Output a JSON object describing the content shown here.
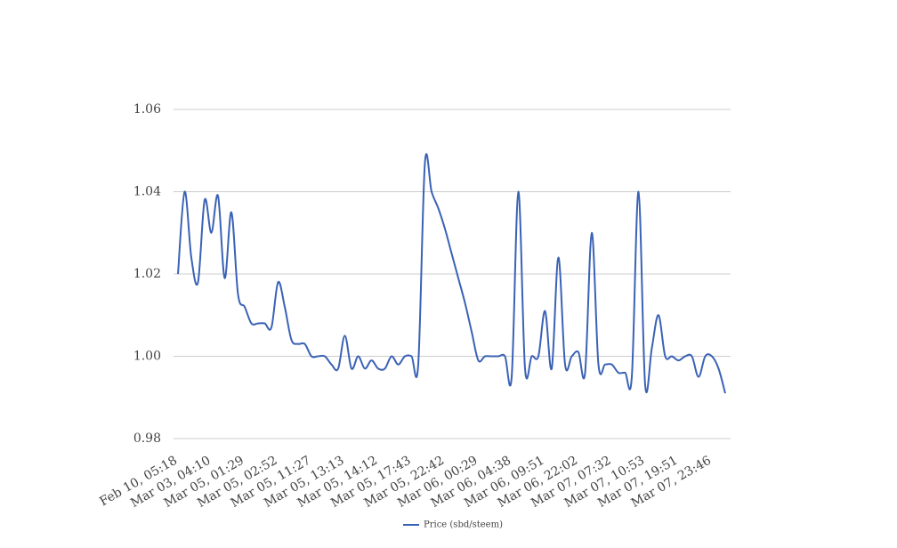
{
  "chart_data": {
    "type": "line",
    "categories": [
      "Feb 10, 05:18",
      null,
      null,
      null,
      null,
      "Mar 03, 04:10",
      null,
      null,
      null,
      null,
      "Mar 05, 01:29",
      null,
      null,
      null,
      null,
      "Mar 05, 02:52",
      null,
      null,
      null,
      null,
      "Mar 05, 11:27",
      null,
      null,
      null,
      null,
      "Mar 05, 13:13",
      null,
      null,
      null,
      null,
      "Mar 05, 14:12",
      null,
      null,
      null,
      null,
      "Mar 05, 17:43",
      null,
      null,
      null,
      null,
      "Mar 05, 22:42",
      null,
      null,
      null,
      null,
      "Mar 06, 00:29",
      null,
      null,
      null,
      null,
      "Mar 06, 04:38",
      null,
      null,
      null,
      null,
      "Mar 06, 09:51",
      null,
      null,
      null,
      null,
      "Mar 06, 22:02",
      null,
      null,
      null,
      null,
      "Mar 07, 07:32",
      null,
      null,
      null,
      null,
      "Mar 07, 10:53",
      null,
      null,
      null,
      null,
      "Mar 07, 19:51",
      null,
      null,
      null,
      null,
      "Mar 07, 23:46",
      null,
      null
    ],
    "series": [
      {
        "name": "Price (sbd/steem)",
        "color": "#3a62b5",
        "values": [
          1.02,
          1.04,
          1.024,
          1.018,
          1.038,
          1.03,
          1.039,
          1.019,
          1.035,
          1.015,
          1.012,
          1.008,
          1.008,
          1.008,
          1.007,
          1.018,
          1.012,
          1.004,
          1.003,
          1.003,
          1.0,
          1.0,
          1.0,
          0.998,
          0.997,
          1.005,
          0.997,
          1.0,
          0.997,
          0.999,
          0.997,
          0.997,
          1.0,
          0.998,
          1.0,
          1.0,
          0.998,
          1.047,
          1.04,
          1.036,
          1.031,
          1.025,
          1.019,
          1.013,
          1.006,
          0.999,
          1.0,
          1.0,
          1.0,
          1.0,
          0.995,
          1.04,
          0.997,
          1.0,
          1.0,
          1.011,
          0.997,
          1.024,
          0.998,
          1.0,
          1.001,
          0.996,
          1.03,
          0.998,
          0.998,
          0.998,
          0.996,
          0.996,
          0.995,
          1.04,
          0.993,
          1.002,
          1.01,
          1.0,
          1.0,
          0.999,
          1.0,
          1.0,
          0.995,
          1.0,
          1.0,
          0.997,
          0.991
        ]
      }
    ],
    "ylim": [
      0.98,
      1.06
    ],
    "yticks": [
      {
        "value": 0.98,
        "label": "0.98"
      },
      {
        "value": 1.0,
        "label": "1.00"
      },
      {
        "value": 1.02,
        "label": "1.02"
      },
      {
        "value": 1.04,
        "label": "1.04"
      },
      {
        "value": 1.06,
        "label": "1.06"
      }
    ],
    "grid": true,
    "legend": "bottom"
  }
}
